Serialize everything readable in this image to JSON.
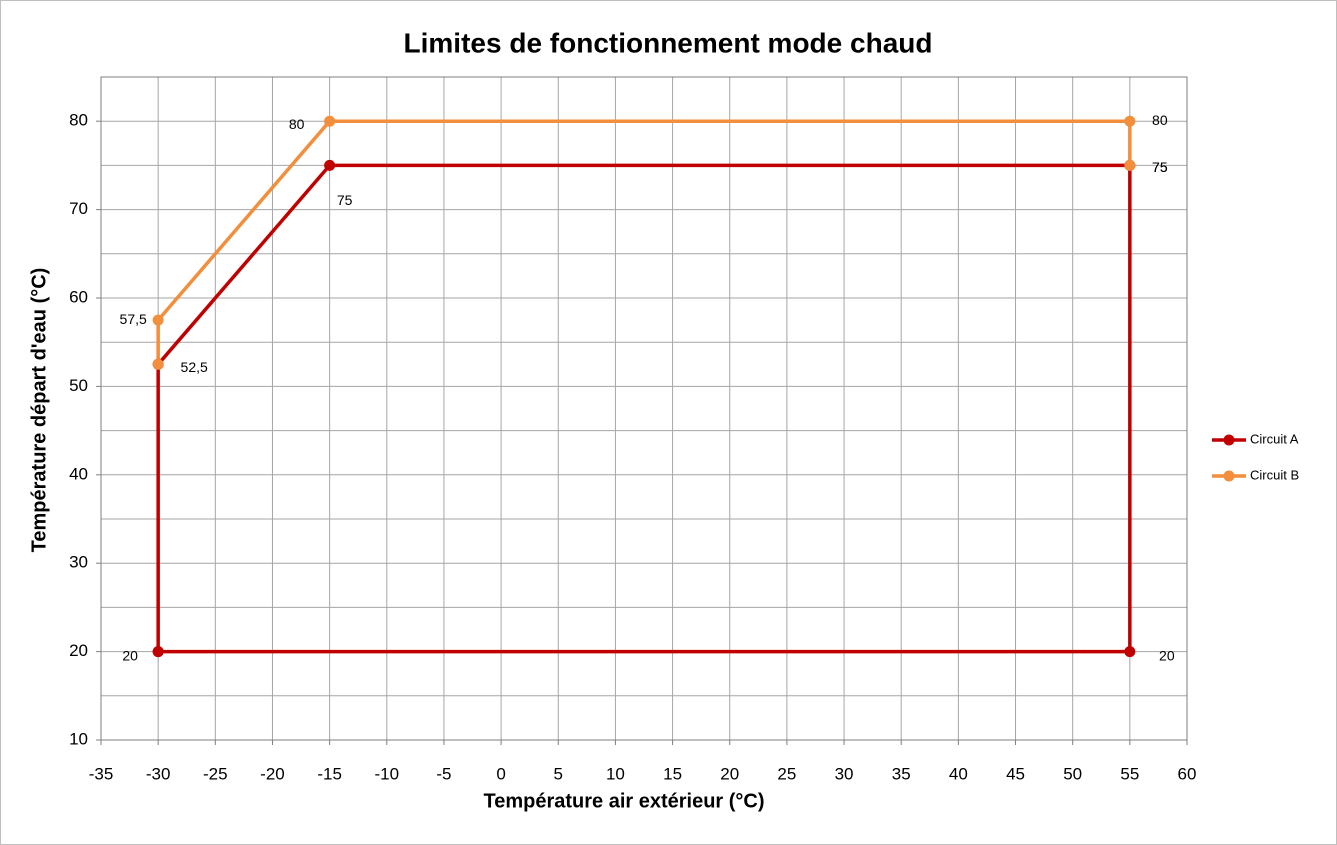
{
  "chart_data": {
    "type": "line",
    "title": "Limites de fonctionnement mode chaud",
    "x_label": "Température air extérieur (°C)",
    "y_label": "Température départ d'eau (°C)",
    "xlim": [
      -35,
      60
    ],
    "xticks": [
      -35,
      -30,
      -25,
      -20,
      -15,
      -10,
      -5,
      0,
      5,
      10,
      15,
      20,
      25,
      30,
      35,
      40,
      45,
      50,
      55,
      60
    ],
    "ylim": [
      10,
      85
    ],
    "yticks": [
      10,
      20,
      30,
      40,
      50,
      60,
      70,
      80
    ],
    "y_minor_grid": [
      15,
      25,
      35,
      45,
      55,
      65,
      75,
      85
    ],
    "grid": true,
    "legend": "right",
    "series": [
      {
        "name": "Circuit A",
        "color": "#c00000",
        "x": [
          -30,
          -30,
          -15,
          55,
          55,
          -30
        ],
        "values": [
          20,
          52.5,
          75,
          75,
          20,
          20
        ],
        "value_labels": [
          "20",
          "52,5",
          "75",
          "75",
          "20",
          null
        ]
      },
      {
        "name": "Circuit B",
        "color": "#f28e3c",
        "x": [
          -30,
          -30,
          -15,
          55,
          55
        ],
        "values": [
          52.5,
          57.5,
          80,
          80,
          75
        ],
        "value_labels": [
          null,
          "57,5",
          "80",
          "80",
          "75"
        ]
      }
    ]
  }
}
